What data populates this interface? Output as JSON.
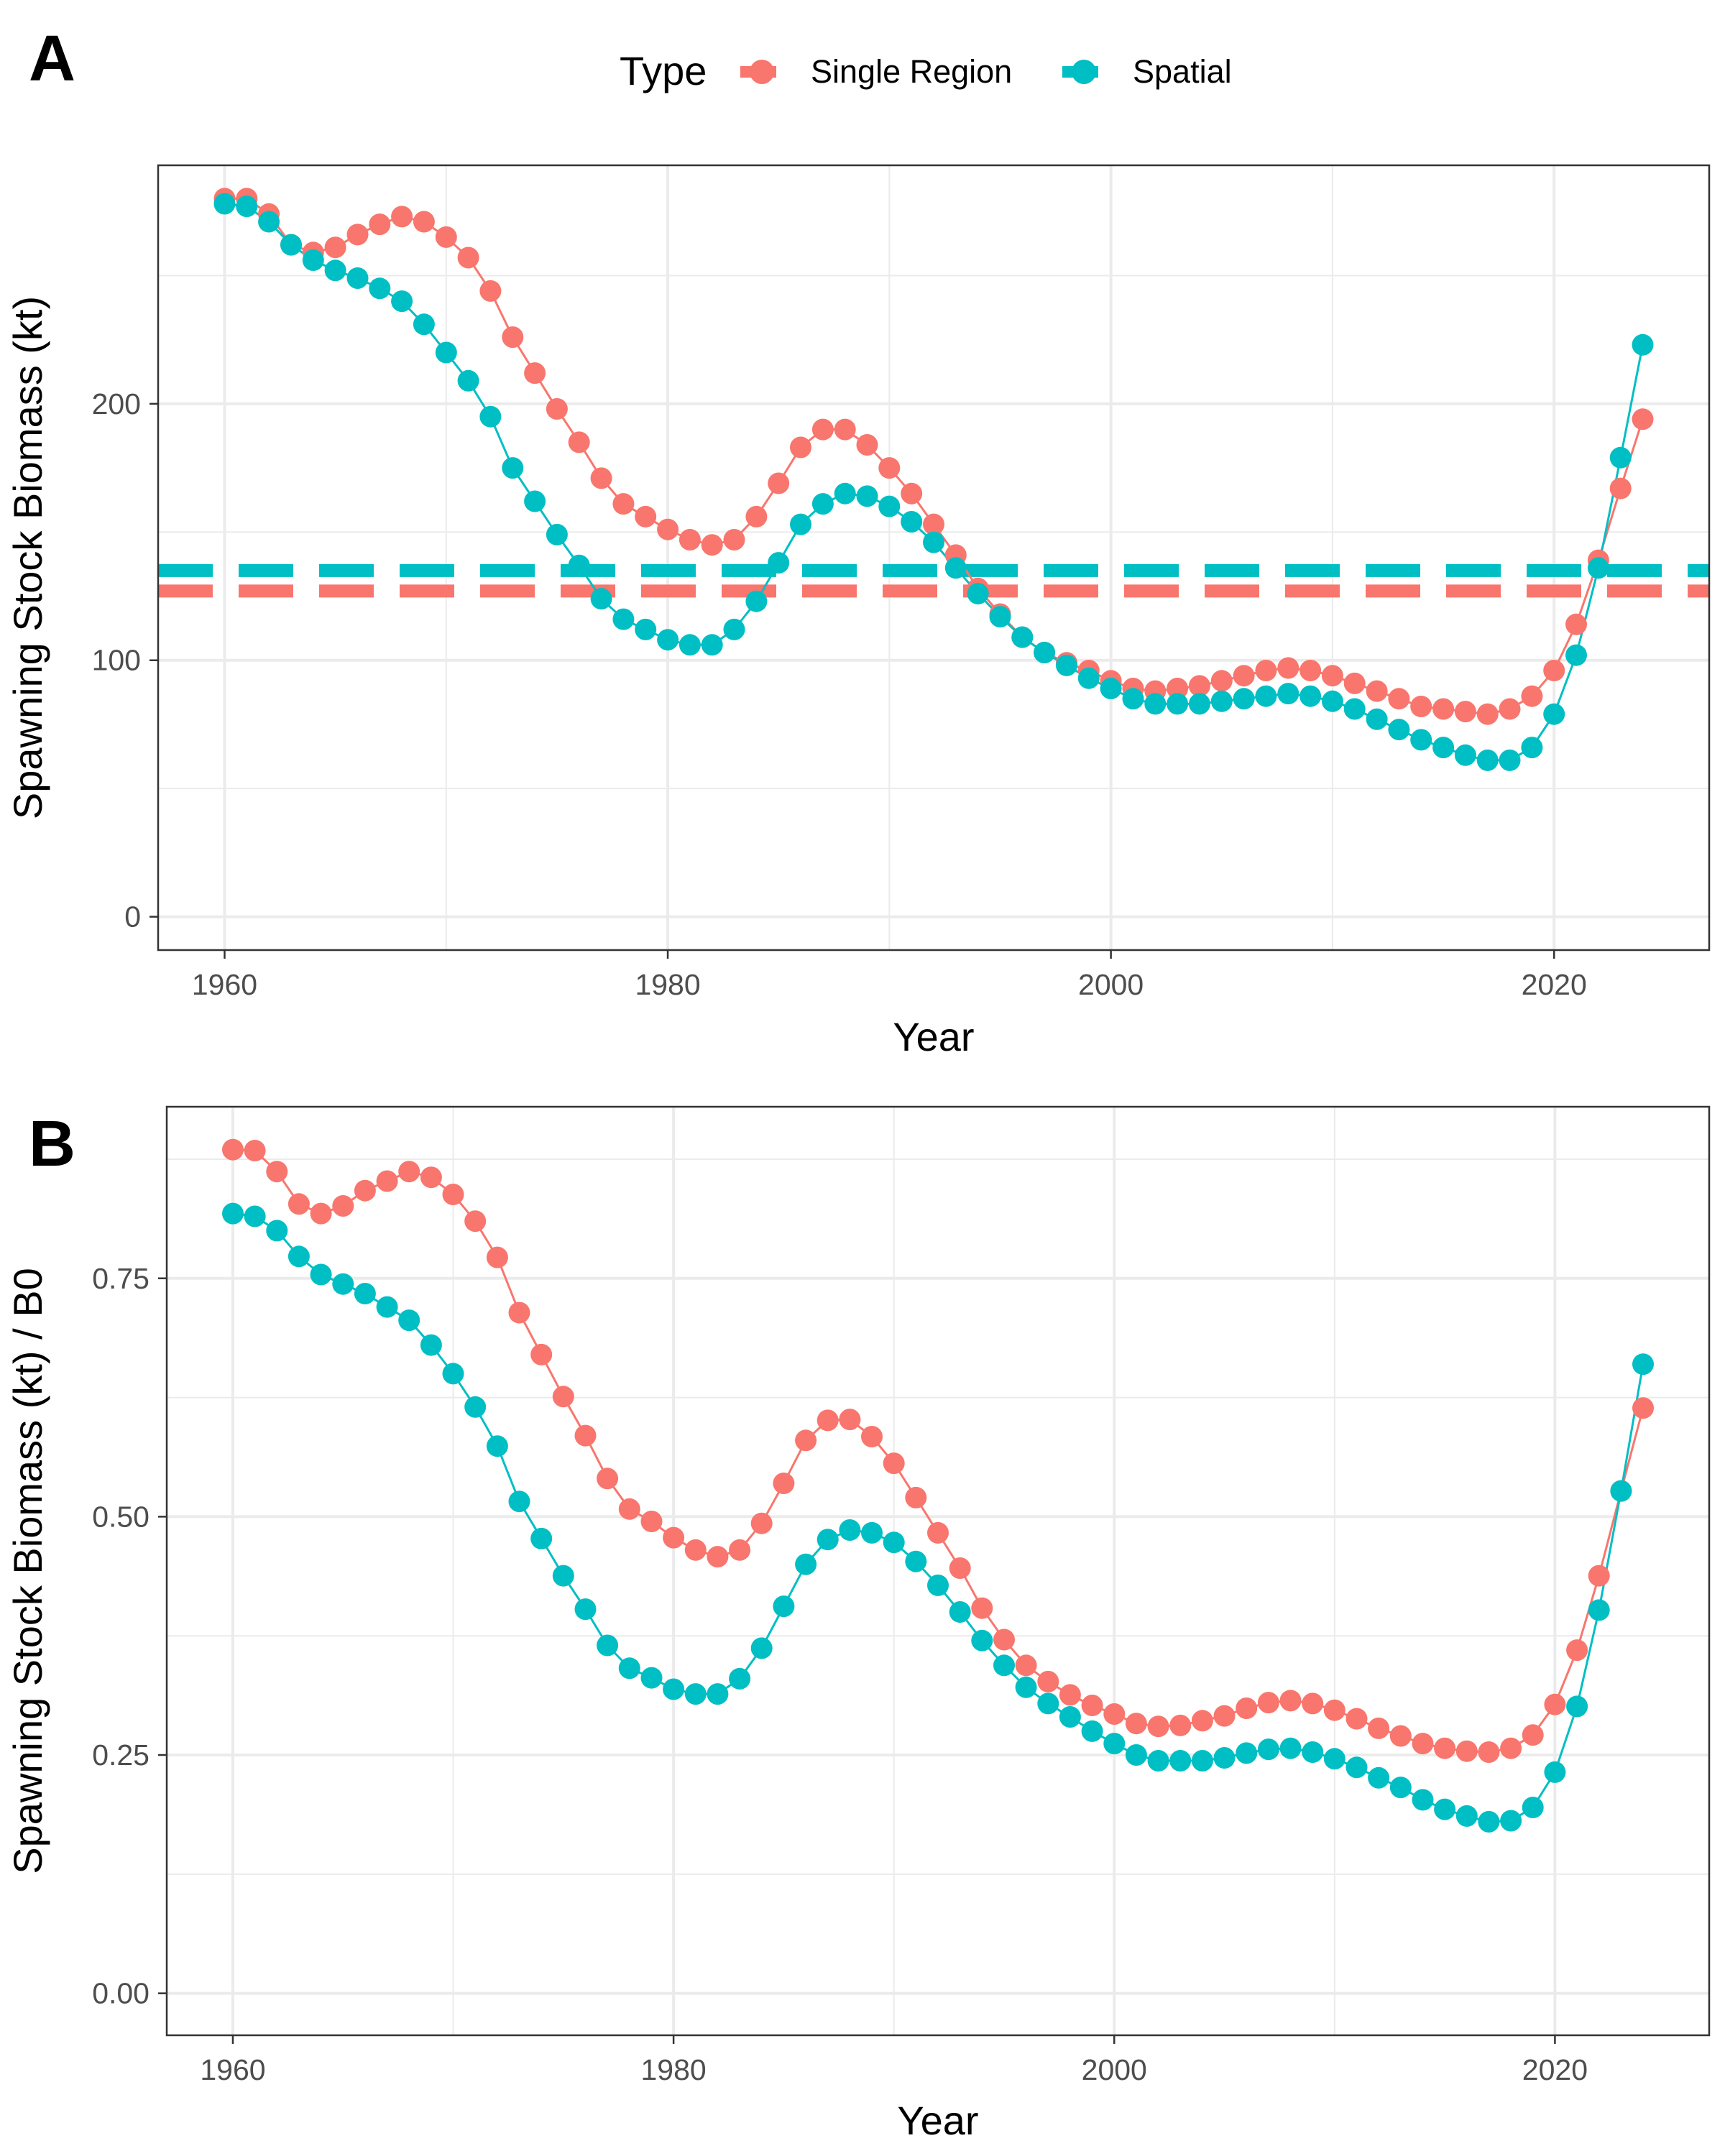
{
  "legend": {
    "title": "Type",
    "position": "top",
    "items": [
      {
        "label": "Single Region",
        "color": "#F8766D"
      },
      {
        "label": "Spatial",
        "color": "#00BFC4"
      }
    ]
  },
  "chart_data": [
    {
      "panel_tag": "A",
      "type": "line",
      "xlabel": "Year",
      "ylabel": "Spawning Stock Biomass (kt)",
      "xlim": [
        1957,
        2027
      ],
      "ylim": [
        -13,
        293
      ],
      "x_ticks": [
        1960,
        1980,
        2000,
        2020
      ],
      "y_ticks": [
        0,
        100,
        200
      ],
      "y_tick_labels": [
        "0",
        "100",
        "200"
      ],
      "grid": true,
      "x": [
        1960,
        1961,
        1962,
        1963,
        1964,
        1965,
        1966,
        1967,
        1968,
        1969,
        1970,
        1971,
        1972,
        1973,
        1974,
        1975,
        1976,
        1977,
        1978,
        1979,
        1980,
        1981,
        1982,
        1983,
        1984,
        1985,
        1986,
        1987,
        1988,
        1989,
        1990,
        1991,
        1992,
        1993,
        1994,
        1995,
        1996,
        1997,
        1998,
        1999,
        2000,
        2001,
        2002,
        2003,
        2004,
        2005,
        2006,
        2007,
        2008,
        2009,
        2010,
        2011,
        2012,
        2013,
        2014,
        2015,
        2016,
        2017,
        2018,
        2019,
        2020,
        2021,
        2022,
        2023,
        2024
      ],
      "series": [
        {
          "name": "Single Region",
          "color": "#F8766D",
          "values": [
            280,
            280,
            274,
            262,
            259,
            261,
            266,
            270,
            273,
            271,
            265,
            257,
            244,
            226,
            212,
            198,
            185,
            171,
            161,
            156,
            151,
            147,
            145,
            147,
            156,
            169,
            183,
            190,
            190,
            184,
            175,
            165,
            153,
            141,
            128,
            118,
            109,
            103,
            99,
            96,
            92,
            89,
            88,
            89,
            90,
            92,
            94,
            96,
            97,
            96,
            94,
            91,
            88,
            85,
            82,
            81,
            80,
            79,
            81,
            86,
            96,
            114,
            139,
            167,
            194
          ]
        },
        {
          "name": "Spatial",
          "color": "#00BFC4",
          "values": [
            278,
            277,
            271,
            262,
            256,
            252,
            249,
            245,
            240,
            231,
            220,
            209,
            195,
            175,
            162,
            149,
            137,
            124,
            116,
            112,
            108,
            106,
            106,
            112,
            123,
            138,
            153,
            161,
            165,
            164,
            160,
            154,
            146,
            136,
            126,
            117,
            109,
            103,
            98,
            93,
            89,
            85,
            83,
            83,
            83,
            84,
            85,
            86,
            87,
            86,
            84,
            81,
            77,
            73,
            69,
            66,
            63,
            61,
            61,
            66,
            79,
            102,
            136,
            179,
            223
          ]
        }
      ],
      "reference_lines": [
        {
          "type": "Spatial",
          "y": 135,
          "color": "#00BFC4",
          "style": "dashed"
        },
        {
          "type": "Single Region",
          "y": 127,
          "color": "#F8766D",
          "style": "dashed"
        }
      ]
    },
    {
      "panel_tag": "B",
      "type": "line",
      "xlabel": "Year",
      "ylabel": "Spawning Stock Biomass (kt) / B0",
      "xlim": [
        1957,
        2027
      ],
      "ylim": [
        -0.044,
        0.93
      ],
      "x_ticks": [
        1960,
        1980,
        2000,
        2020
      ],
      "y_ticks": [
        0,
        0.25,
        0.5,
        0.75
      ],
      "y_tick_labels": [
        "0.00",
        "0.25",
        "0.50",
        "0.75"
      ],
      "grid": true,
      "x": [
        1960,
        1961,
        1962,
        1963,
        1964,
        1965,
        1966,
        1967,
        1968,
        1969,
        1970,
        1971,
        1972,
        1973,
        1974,
        1975,
        1976,
        1977,
        1978,
        1979,
        1980,
        1981,
        1982,
        1983,
        1984,
        1985,
        1986,
        1987,
        1988,
        1989,
        1990,
        1991,
        1992,
        1993,
        1994,
        1995,
        1996,
        1997,
        1998,
        1999,
        2000,
        2001,
        2002,
        2003,
        2004,
        2005,
        2006,
        2007,
        2008,
        2009,
        2010,
        2011,
        2012,
        2013,
        2014,
        2015,
        2016,
        2017,
        2018,
        2019,
        2020,
        2021,
        2022,
        2023,
        2024
      ],
      "series": [
        {
          "name": "Single Region",
          "color": "#F8766D",
          "values": [
            0.885,
            0.884,
            0.862,
            0.828,
            0.818,
            0.826,
            0.842,
            0.852,
            0.862,
            0.856,
            0.838,
            0.81,
            0.772,
            0.714,
            0.67,
            0.626,
            0.585,
            0.54,
            0.508,
            0.495,
            0.478,
            0.465,
            0.458,
            0.465,
            0.493,
            0.535,
            0.58,
            0.601,
            0.602,
            0.584,
            0.556,
            0.52,
            0.483,
            0.446,
            0.404,
            0.371,
            0.344,
            0.327,
            0.313,
            0.302,
            0.293,
            0.283,
            0.28,
            0.281,
            0.286,
            0.291,
            0.299,
            0.305,
            0.307,
            0.304,
            0.297,
            0.288,
            0.278,
            0.27,
            0.262,
            0.257,
            0.254,
            0.253,
            0.257,
            0.271,
            0.303,
            0.36,
            0.438,
            0.527,
            0.614
          ]
        },
        {
          "name": "Spatial",
          "color": "#00BFC4",
          "values": [
            0.818,
            0.815,
            0.8,
            0.773,
            0.754,
            0.744,
            0.734,
            0.72,
            0.706,
            0.68,
            0.65,
            0.615,
            0.574,
            0.516,
            0.477,
            0.438,
            0.403,
            0.365,
            0.341,
            0.331,
            0.319,
            0.314,
            0.314,
            0.33,
            0.362,
            0.406,
            0.45,
            0.476,
            0.486,
            0.483,
            0.473,
            0.453,
            0.428,
            0.4,
            0.37,
            0.344,
            0.321,
            0.304,
            0.29,
            0.275,
            0.262,
            0.25,
            0.244,
            0.244,
            0.244,
            0.247,
            0.252,
            0.256,
            0.257,
            0.253,
            0.246,
            0.237,
            0.226,
            0.216,
            0.203,
            0.193,
            0.186,
            0.18,
            0.181,
            0.195,
            0.232,
            0.301,
            0.402,
            0.527,
            0.66
          ]
        }
      ]
    }
  ]
}
